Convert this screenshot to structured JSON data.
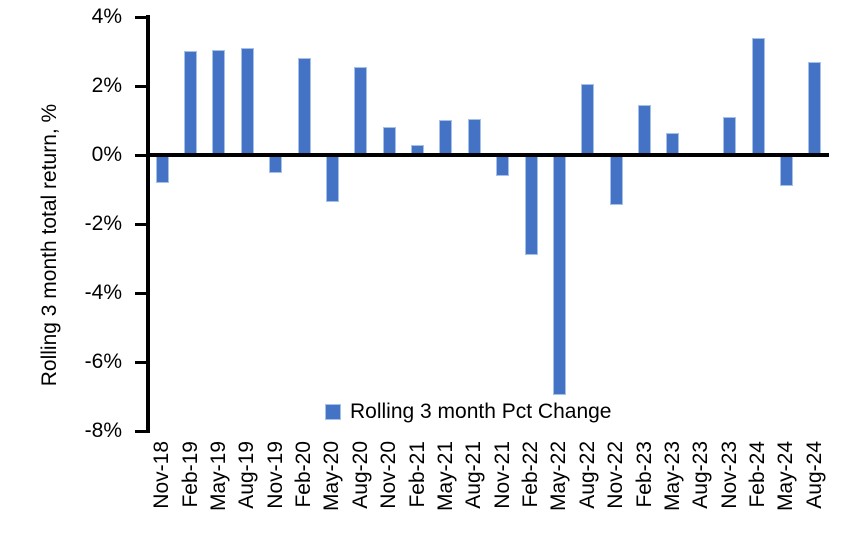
{
  "chart_data": {
    "type": "bar",
    "title": "",
    "ylabel": "Rolling 3 month total return, %",
    "xlabel": "",
    "legend_label": "Rolling 3 month Pct Change",
    "legend_position": "bottom-center-inside",
    "bar_color": "#4472C4",
    "bar_edge_color": "#A6C1E8",
    "axis_color": "#000000",
    "grid": false,
    "ylim": [
      -8,
      4
    ],
    "y_tick_labels": [
      "4%",
      "2%",
      "0%",
      "-2%",
      "-4%",
      "-6%",
      "-8%"
    ],
    "y_tick_values": [
      4,
      2,
      0,
      -2,
      -4,
      -6,
      -8
    ],
    "categories": [
      "Nov-18",
      "Feb-19",
      "May-19",
      "Aug-19",
      "Nov-19",
      "Feb-20",
      "May-20",
      "Aug-20",
      "Nov-20",
      "Feb-21",
      "May-21",
      "Aug-21",
      "Nov-21",
      "Feb-22",
      "May-22",
      "Aug-22",
      "Nov-22",
      "Feb-23",
      "May-23",
      "Aug-23",
      "Nov-23",
      "Feb-24",
      "May-24",
      "Aug-24"
    ],
    "values": [
      -0.75,
      3.0,
      3.05,
      3.1,
      -0.45,
      2.8,
      -1.3,
      2.55,
      0.8,
      0.3,
      1.0,
      1.05,
      -0.55,
      -2.85,
      -6.9,
      2.05,
      -1.4,
      1.45,
      0.65,
      0.0,
      1.1,
      3.4,
      -0.85,
      2.7
    ]
  }
}
